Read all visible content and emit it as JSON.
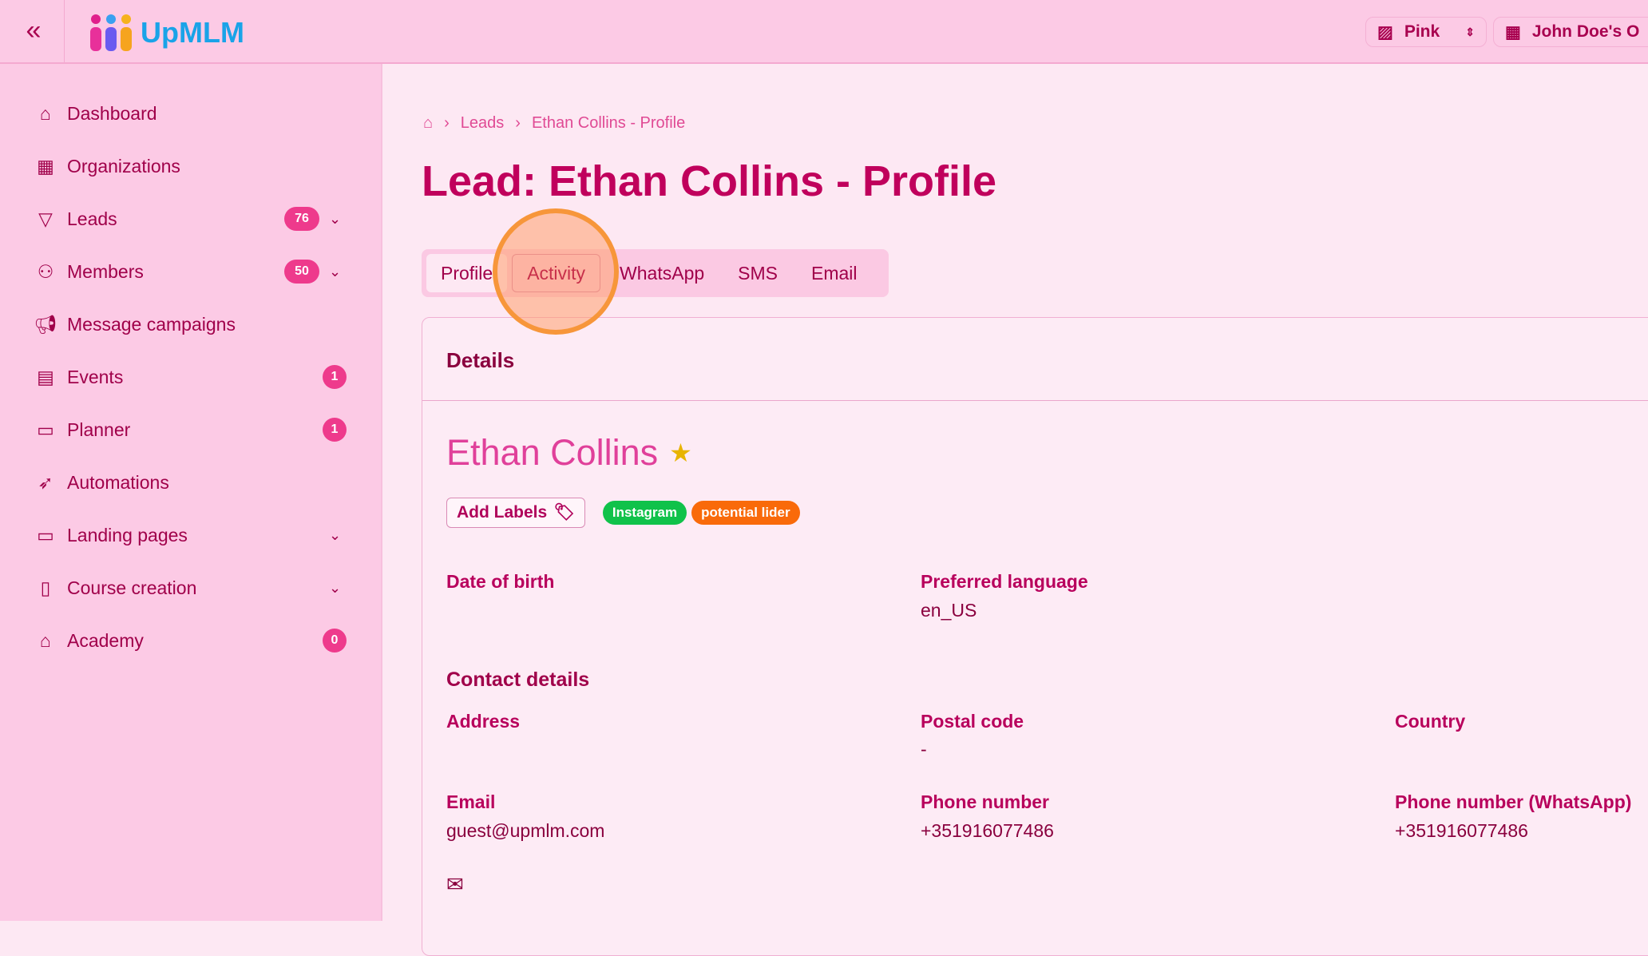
{
  "header": {
    "brand": "UpMLM",
    "theme_label": "Pink",
    "org_label": "John Doe's O"
  },
  "sidebar": {
    "items": [
      {
        "label": "Dashboard",
        "icon": "home-icon"
      },
      {
        "label": "Organizations",
        "icon": "building-icon"
      },
      {
        "label": "Leads",
        "icon": "funnel-icon",
        "badge": "76",
        "expandable": true
      },
      {
        "label": "Members",
        "icon": "users-icon",
        "badge": "50",
        "expandable": true
      },
      {
        "label": "Message campaigns",
        "icon": "megaphone-icon"
      },
      {
        "label": "Events",
        "icon": "calendar-icon",
        "badge": "1"
      },
      {
        "label": "Planner",
        "icon": "clipboard-icon",
        "badge": "1"
      },
      {
        "label": "Automations",
        "icon": "rocket-icon"
      },
      {
        "label": "Landing pages",
        "icon": "monitor-icon",
        "expandable": true
      },
      {
        "label": "Course creation",
        "icon": "book-icon",
        "expandable": true
      },
      {
        "label": "Academy",
        "icon": "graduation-cap-icon",
        "badge": "0"
      }
    ]
  },
  "breadcrumb": {
    "items": [
      "Leads",
      "Ethan Collins - Profile"
    ]
  },
  "page": {
    "title": "Lead: Ethan Collins - Profile"
  },
  "tabs": [
    "Profile",
    "Activity",
    "WhatsApp",
    "SMS",
    "Email"
  ],
  "active_tab": "Profile",
  "card": {
    "header": "Details",
    "name": "Ethan Collins",
    "add_labels": "Add Labels",
    "tags": [
      {
        "label": "Instagram",
        "color": "#10c24a"
      },
      {
        "label": "potential lider",
        "color": "#f96a0a"
      }
    ],
    "date_of_birth_label": "Date of birth",
    "preferred_language_label": "Preferred language",
    "preferred_language": "en_US",
    "contact_section": "Contact details",
    "address_label": "Address",
    "postal_code_label": "Postal code",
    "postal_code": "-",
    "country_label": "Country",
    "email_label": "Email",
    "email": "guest@upmlm.com",
    "phone_label": "Phone number",
    "phone": "+351916077486",
    "whatsapp_label": "Phone number (WhatsApp)",
    "whatsapp": "+351916077486"
  },
  "colors": {
    "primary": "#c0005c",
    "sidebar_bg": "#fccae5",
    "main_bg": "#fde8f3",
    "badge": "#ee3a8c"
  }
}
